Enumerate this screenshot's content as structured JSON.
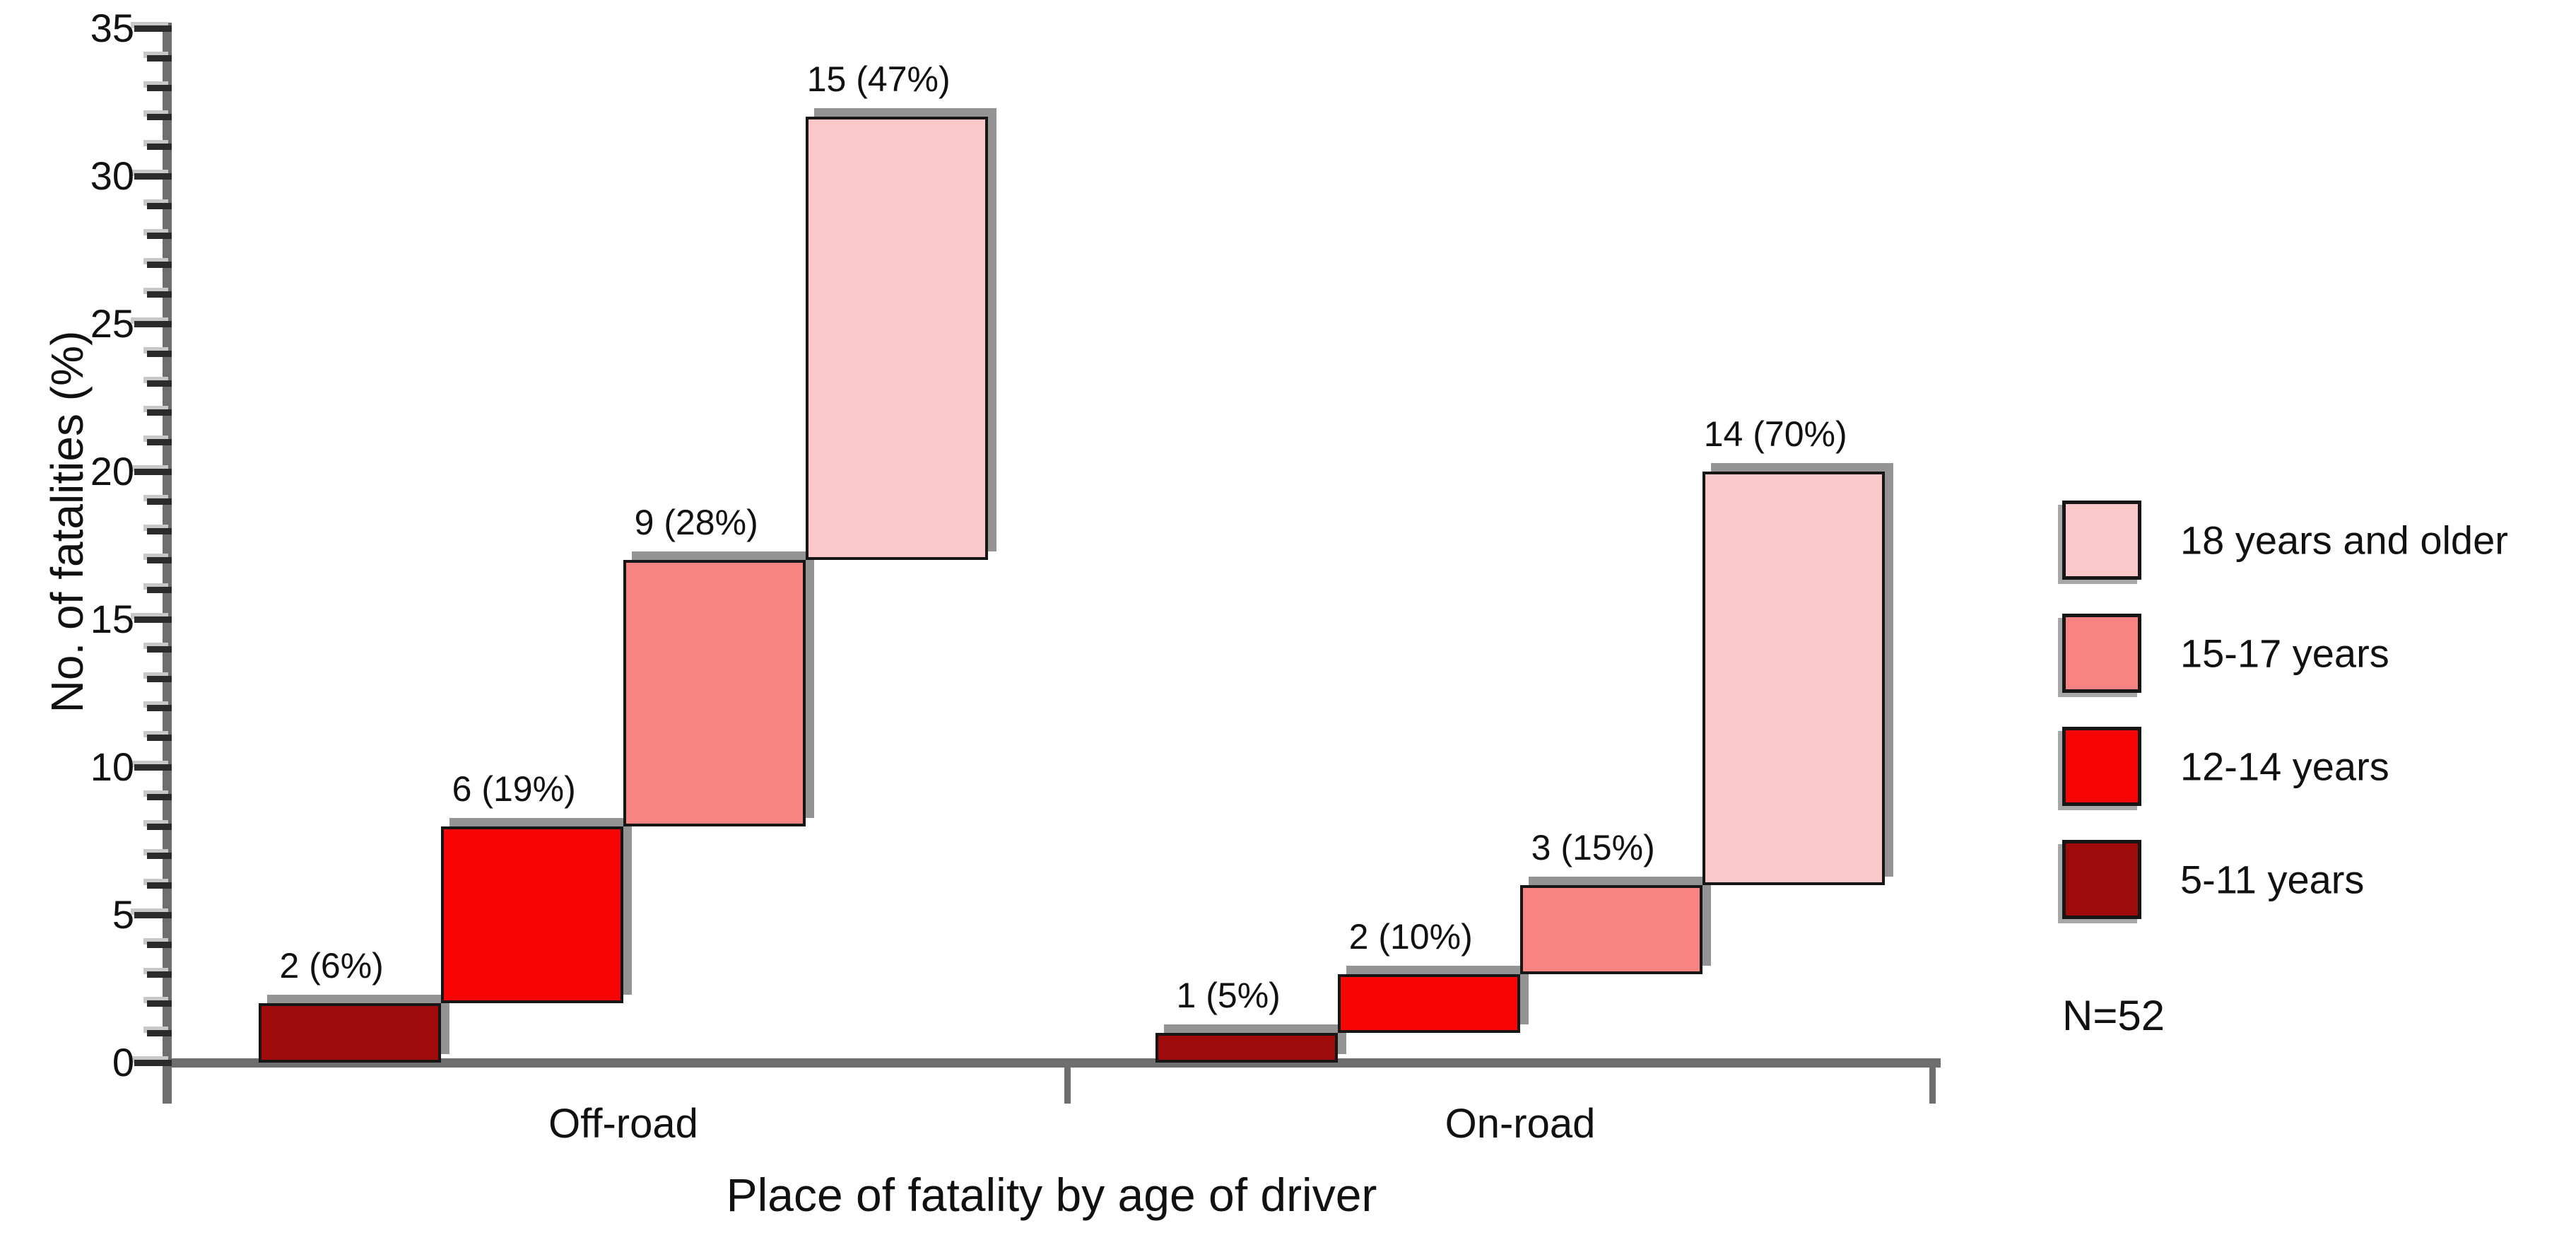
{
  "chart_data": {
    "type": "bar",
    "subtype": "stepped-cumulative-stacked",
    "title": "",
    "xlabel": "Place of fatality by age of driver",
    "ylabel": "No. of fatalities (%)",
    "note": "N=52",
    "ylim": [
      0,
      35
    ],
    "y_major_ticks": [
      0,
      5,
      10,
      15,
      20,
      25,
      30,
      35
    ],
    "y_minor_step": 1,
    "grid": false,
    "categories": [
      "Off-road",
      "On-road"
    ],
    "age_groups": [
      {
        "name": "5-11 years",
        "color": "#a00c0c"
      },
      {
        "name": "12-14 years",
        "color": "#fa0505"
      },
      {
        "name": "15-17 years",
        "color": "#f78383"
      },
      {
        "name": "18 years and older",
        "color": "#fac8c8"
      }
    ],
    "series": [
      {
        "category": "Off-road",
        "segments": [
          {
            "group": "5-11 years",
            "value": 2,
            "label": "2 (6%)"
          },
          {
            "group": "12-14 years",
            "value": 6,
            "label": "6 (19%)"
          },
          {
            "group": "15-17 years",
            "value": 9,
            "label": "9 (28%)"
          },
          {
            "group": "18 years and older",
            "value": 15,
            "label": "15 (47%)"
          }
        ]
      },
      {
        "category": "On-road",
        "segments": [
          {
            "group": "5-11 years",
            "value": 1,
            "label": "1 (5%)"
          },
          {
            "group": "12-14 years",
            "value": 2,
            "label": "2 (10%)"
          },
          {
            "group": "15-17 years",
            "value": 3,
            "label": "3 (15%)"
          },
          {
            "group": "18 years and older",
            "value": 14,
            "label": "14 (70%)"
          }
        ]
      }
    ],
    "legend": {
      "position": "right",
      "order": [
        "18 years and older",
        "15-17 years",
        "12-14 years",
        "5-11 years"
      ]
    }
  }
}
